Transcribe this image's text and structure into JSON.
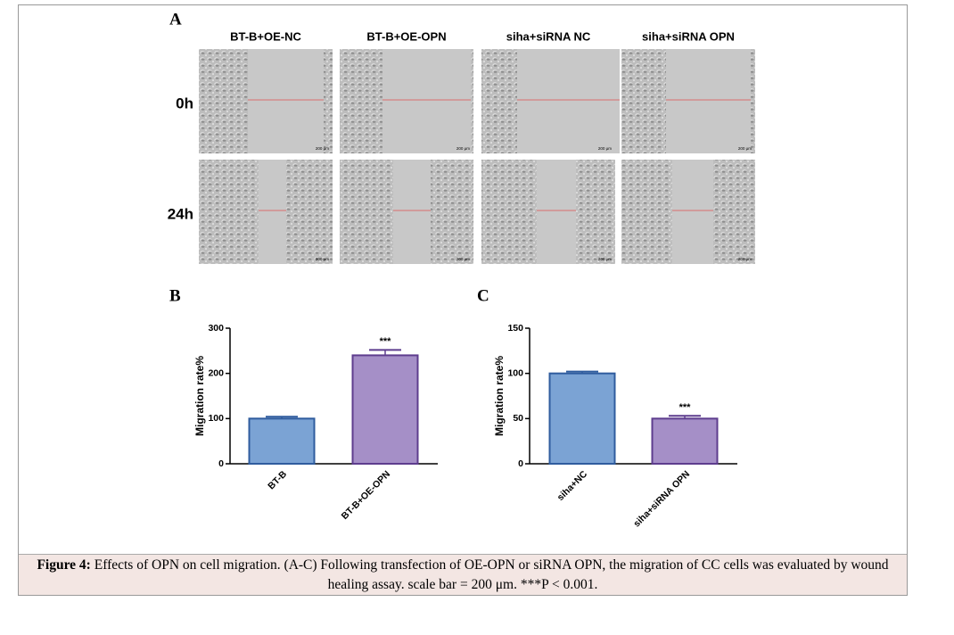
{
  "panel_a": {
    "label": "A",
    "columns": [
      "BT-B+OE-NC",
      "BT-B+OE-OPN",
      "siha+siRNA NC",
      "siha+siRNA OPN"
    ],
    "rows": [
      "0h",
      "24h"
    ],
    "scale_label": "200 μm"
  },
  "chart_data": [
    {
      "type": "bar",
      "label": "B",
      "y_label": "Migration rate%",
      "categories": [
        "BT-B",
        "BT-B+OE-OPN"
      ],
      "values": [
        100,
        240
      ],
      "errors": [
        4,
        12
      ],
      "colors": [
        "#7ba3d4",
        "#a58fc7"
      ],
      "edge_colors": [
        "#2f5c9e",
        "#5e3d8e"
      ],
      "ylim": [
        0,
        300
      ],
      "yticks": [
        0,
        100,
        200,
        300
      ],
      "annotation": {
        "text": "***",
        "category": "BT-B+OE-OPN"
      }
    },
    {
      "type": "bar",
      "label": "C",
      "y_label": "Migration rate%",
      "categories": [
        "siha+NC",
        "siha+siRNA OPN"
      ],
      "values": [
        100,
        50
      ],
      "errors": [
        2,
        3
      ],
      "colors": [
        "#7ba3d4",
        "#a58fc7"
      ],
      "edge_colors": [
        "#2f5c9e",
        "#5e3d8e"
      ],
      "ylim": [
        0,
        150
      ],
      "yticks": [
        0,
        50,
        100,
        150
      ],
      "annotation": {
        "text": "***",
        "category": "siha+siRNA OPN"
      }
    }
  ],
  "caption": {
    "label": "Figure 4:",
    "text": "Effects of OPN on cell migration. (A-C) Following transfection of OE-OPN or siRNA OPN, the migration of CC cells was evaluated by wound healing assay. scale bar = 200 μm. ***P < 0.001."
  }
}
